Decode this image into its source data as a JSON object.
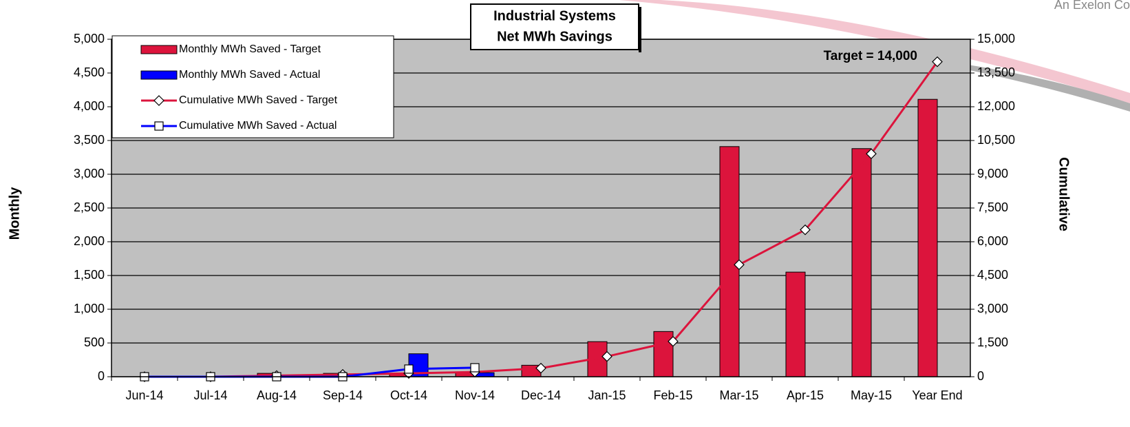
{
  "corner_text": "An Exelon Co",
  "chart_data": {
    "type": "bar_line",
    "title": [
      "Industrial Systems",
      "Net MWh Savings"
    ],
    "y_label": "Monthly",
    "y2_label": "Cumulative",
    "annotation": "Target = 14,000",
    "categories": [
      "Jun-14",
      "Jul-14",
      "Aug-14",
      "Sep-14",
      "Oct-14",
      "Nov-14",
      "Dec-14",
      "Jan-15",
      "Feb-15",
      "Mar-15",
      "Apr-15",
      "May-15",
      "Year End"
    ],
    "series": [
      {
        "name": "Monthly MWh Saved - Target",
        "type": "bar",
        "color": "#dc143c",
        "values": [
          0,
          0,
          50,
          50,
          50,
          60,
          170,
          520,
          670,
          3410,
          1550,
          3380,
          4110
        ]
      },
      {
        "name": "Monthly MWh Saved - Actual",
        "type": "bar",
        "color": "#0000ff",
        "values": [
          0,
          0,
          0,
          0,
          340,
          60,
          null,
          null,
          null,
          null,
          null,
          null,
          null
        ]
      },
      {
        "name": "Cumulative MWh Saved - Target",
        "type": "line",
        "marker": "diamond",
        "axis": "y2",
        "color": "#dc143c",
        "values": [
          0,
          0,
          50,
          100,
          150,
          210,
          380,
          900,
          1570,
          4980,
          6530,
          9910,
          14000
        ]
      },
      {
        "name": "Cumulative MWh Saved - Actual",
        "type": "line",
        "marker": "square",
        "axis": "y2",
        "color": "#0000ff",
        "values": [
          0,
          0,
          0,
          0,
          340,
          400,
          null,
          null,
          null,
          null,
          null,
          null,
          null
        ]
      }
    ],
    "ylim": [
      0,
      5000
    ],
    "yticks": [
      0,
      500,
      {
        "value": 1000,
        "label": "1,000"
      },
      {
        "value": 1500,
        "label": "1,500"
      },
      {
        "value": 2000,
        "label": "2,000"
      },
      {
        "value": 2500,
        "label": "2,500"
      },
      {
        "value": 3000,
        "label": "3,000"
      },
      {
        "value": 3500,
        "label": "3,500"
      },
      {
        "value": 4000,
        "label": "4,000"
      },
      {
        "value": 4500,
        "label": "4,500"
      },
      {
        "value": 5000,
        "label": "5,000"
      }
    ],
    "y2lim": [
      0,
      15000
    ],
    "y2ticks": [
      0,
      {
        "value": 1500,
        "label": "1,500"
      },
      {
        "value": 3000,
        "label": "3,000"
      },
      {
        "value": 4500,
        "label": "4,500"
      },
      {
        "value": 6000,
        "label": "6,000"
      },
      {
        "value": 7500,
        "label": "7,500"
      },
      {
        "value": 9000,
        "label": "9,000"
      },
      {
        "value": 10500,
        "label": "10,500"
      },
      {
        "value": 12000,
        "label": "12,000"
      },
      {
        "value": 13500,
        "label": "13,500"
      },
      {
        "value": 15000,
        "label": "15,000"
      }
    ],
    "grid": true,
    "legend": "upper left"
  }
}
